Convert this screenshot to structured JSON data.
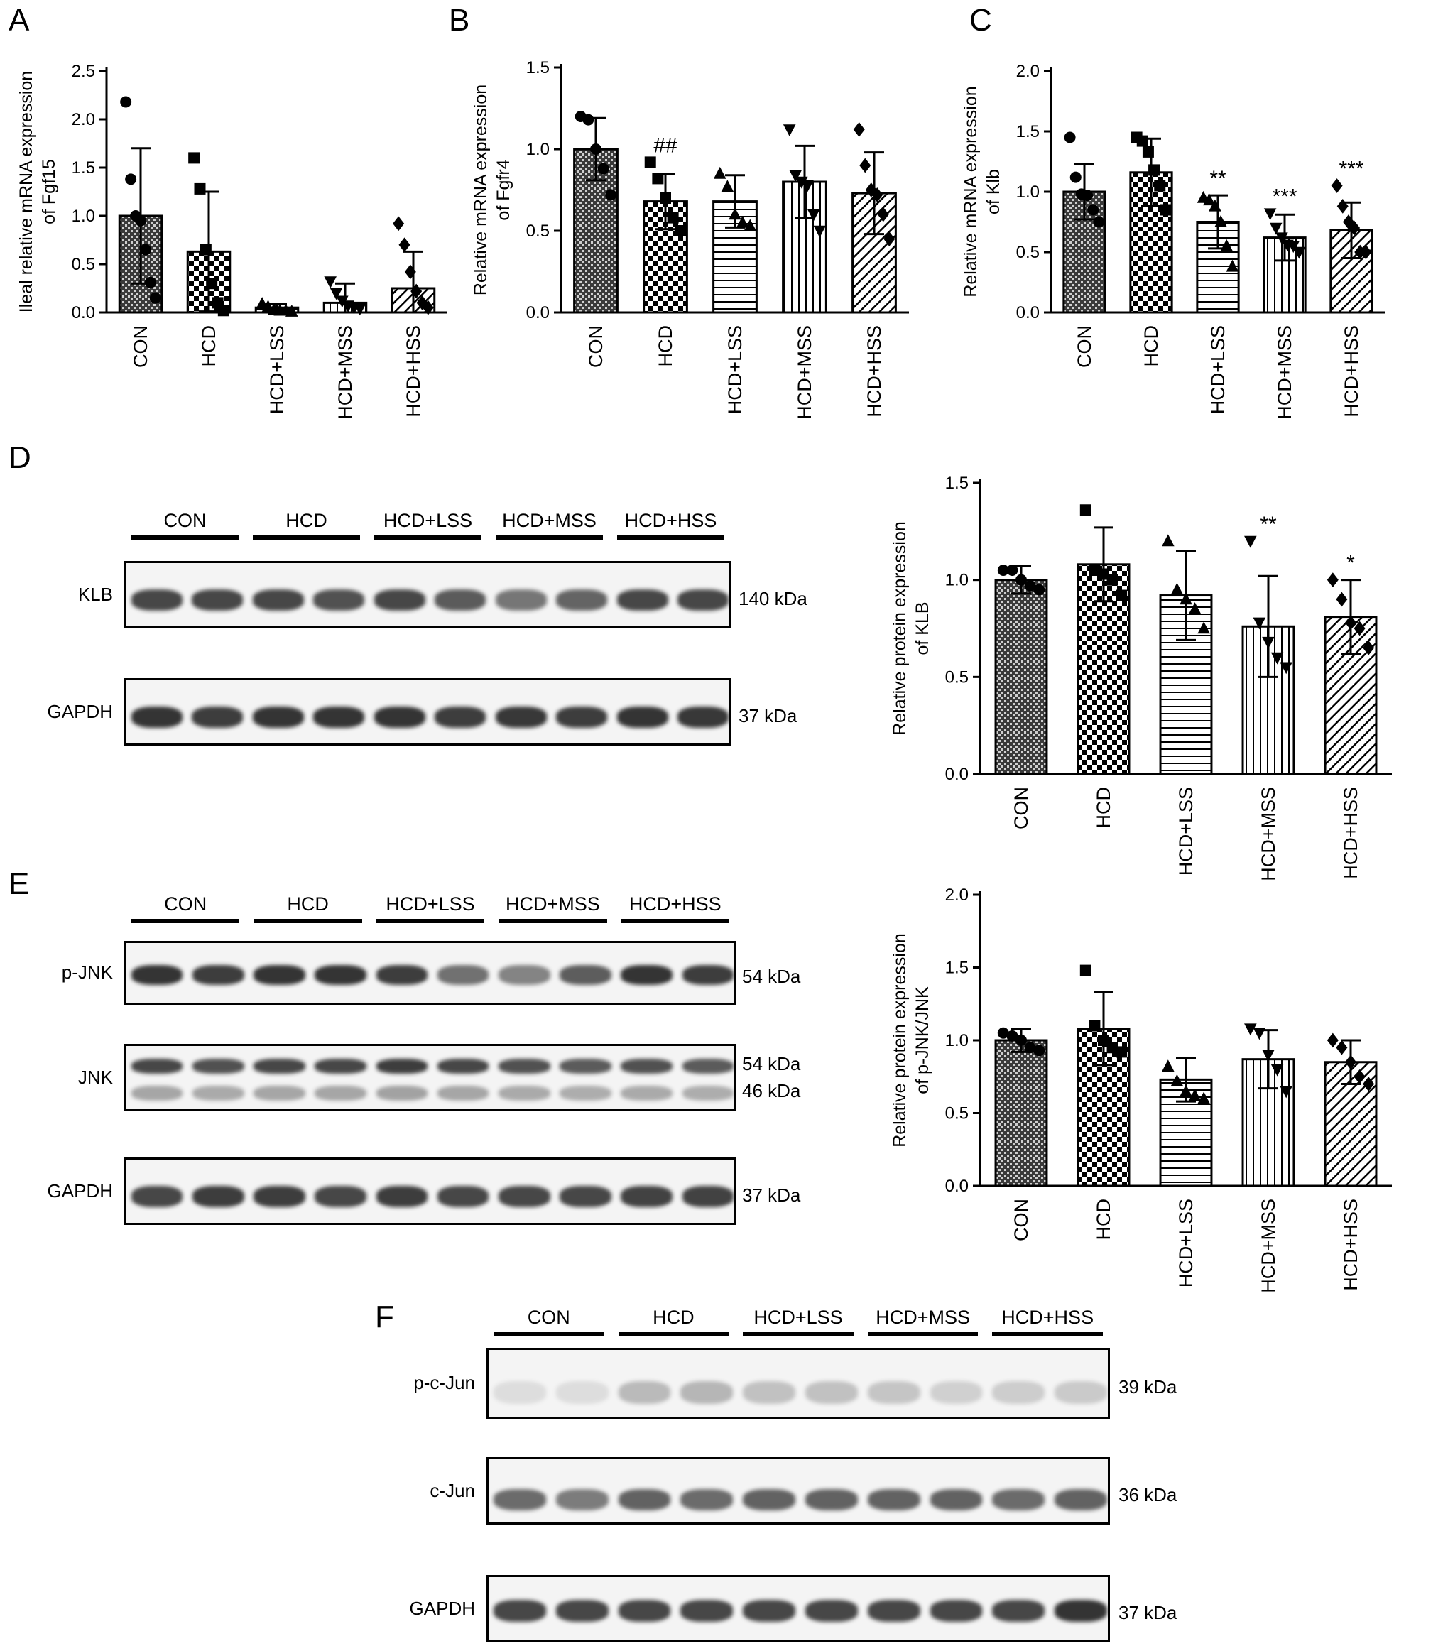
{
  "panels": [
    "A",
    "B",
    "C",
    "D",
    "E",
    "F"
  ],
  "groups": [
    "CON",
    "HCD",
    "HCD+LSS",
    "HCD+MSS",
    "HCD+HSS"
  ],
  "chart_data": [
    {
      "id": "A",
      "type": "bar",
      "ylabel_lines": [
        "Ileal relative mRNA expression",
        "of Fgf15"
      ],
      "categories": [
        "CON",
        "HCD",
        "HCD+LSS",
        "HCD+MSS",
        "HCD+HSS"
      ],
      "values": [
        1.0,
        0.63,
        0.05,
        0.1,
        0.25
      ],
      "error": [
        0.7,
        0.62,
        0.04,
        0.2,
        0.38
      ],
      "points": [
        [
          2.18,
          1.38,
          1.0,
          0.95,
          0.65,
          0.31,
          0.15
        ],
        [
          1.6,
          1.28,
          0.65,
          0.3,
          0.1,
          0.02
        ],
        [
          0.09,
          0.06,
          0.03,
          0.02,
          0.02,
          0.01
        ],
        [
          0.32,
          0.2,
          0.12,
          0.07,
          0.05,
          0.04
        ],
        [
          0.92,
          0.7,
          0.42,
          0.22,
          0.1,
          0.05
        ]
      ],
      "markers": [
        "circle",
        "square",
        "triangle",
        "tri-down",
        "diamond"
      ],
      "ylim": [
        0,
        2.5
      ],
      "yticks": [
        "0.0",
        "0.5",
        "1.0",
        "1.5",
        "2.0",
        "2.5"
      ],
      "significance": [
        "",
        "",
        "",
        "",
        ""
      ]
    },
    {
      "id": "B",
      "type": "bar",
      "ylabel_lines": [
        "Relative mRNA expression",
        "of Fgfr4"
      ],
      "categories": [
        "CON",
        "HCD",
        "HCD+LSS",
        "HCD+MSS",
        "HCD+HSS"
      ],
      "values": [
        1.0,
        0.68,
        0.68,
        0.8,
        0.73
      ],
      "error": [
        0.19,
        0.17,
        0.16,
        0.22,
        0.25
      ],
      "points": [
        [
          1.2,
          1.18,
          1.0,
          0.88,
          0.72
        ],
        [
          0.92,
          0.82,
          0.7,
          0.58,
          0.5
        ],
        [
          0.85,
          0.77,
          0.6,
          0.55,
          0.53
        ],
        [
          1.12,
          0.84,
          0.8,
          0.78,
          0.6,
          0.5
        ],
        [
          1.12,
          0.9,
          0.75,
          0.72,
          0.6,
          0.45
        ]
      ],
      "markers": [
        "circle",
        "square",
        "triangle",
        "tri-down",
        "diamond"
      ],
      "ylim": [
        0,
        1.5
      ],
      "yticks": [
        "0.0",
        "0.5",
        "1.0",
        "1.5"
      ],
      "significance": [
        "",
        "##",
        "",
        "",
        ""
      ]
    },
    {
      "id": "C",
      "type": "bar",
      "ylabel_lines": [
        "Relative mRNA expression",
        "of Klb"
      ],
      "categories": [
        "CON",
        "HCD",
        "HCD+LSS",
        "HCD+MSS",
        "HCD+HSS"
      ],
      "values": [
        1.0,
        1.16,
        0.75,
        0.62,
        0.68
      ],
      "error": [
        0.23,
        0.28,
        0.22,
        0.19,
        0.23
      ],
      "points": [
        [
          1.45,
          1.12,
          0.98,
          0.97,
          0.85,
          0.75
        ],
        [
          1.45,
          1.42,
          1.33,
          1.18,
          1.05,
          0.85
        ],
        [
          0.95,
          0.93,
          0.88,
          0.75,
          0.55,
          0.38
        ],
        [
          0.82,
          0.7,
          0.62,
          0.56,
          0.55,
          0.5
        ],
        [
          1.05,
          0.88,
          0.75,
          0.7,
          0.5,
          0.5
        ]
      ],
      "markers": [
        "circle",
        "square",
        "triangle",
        "tri-down",
        "diamond"
      ],
      "ylim": [
        0,
        2.0
      ],
      "yticks": [
        "0.0",
        "0.5",
        "1.0",
        "1.5",
        "2.0"
      ],
      "significance": [
        "",
        "",
        "**",
        "***",
        "***"
      ]
    },
    {
      "id": "D",
      "type": "bar",
      "ylabel_lines": [
        "Relative protein expression",
        "of KLB"
      ],
      "categories": [
        "CON",
        "HCD",
        "HCD+LSS",
        "HCD+MSS",
        "HCD+HSS"
      ],
      "values": [
        1.0,
        1.08,
        0.92,
        0.76,
        0.81
      ],
      "error": [
        0.07,
        0.19,
        0.23,
        0.26,
        0.19
      ],
      "points": [
        [
          1.05,
          1.05,
          1.0,
          0.97,
          0.95
        ],
        [
          1.36,
          1.05,
          1.03,
          1.0,
          0.92
        ],
        [
          1.2,
          0.95,
          0.9,
          0.85,
          0.75
        ],
        [
          1.2,
          0.78,
          0.68,
          0.6,
          0.55
        ],
        [
          1.0,
          0.9,
          0.78,
          0.75,
          0.65
        ]
      ],
      "markers": [
        "circle",
        "square",
        "triangle",
        "tri-down",
        "diamond"
      ],
      "ylim": [
        0,
        1.5
      ],
      "yticks": [
        "0.0",
        "0.5",
        "1.0",
        "1.5"
      ],
      "significance": [
        "",
        "",
        "",
        "**",
        "*"
      ]
    },
    {
      "id": "E",
      "type": "bar",
      "ylabel_lines": [
        "Relative protein expression",
        "of p-JNK/JNK"
      ],
      "categories": [
        "CON",
        "HCD",
        "HCD+LSS",
        "HCD+MSS",
        "HCD+HSS"
      ],
      "values": [
        1.0,
        1.08,
        0.73,
        0.87,
        0.85
      ],
      "error": [
        0.08,
        0.25,
        0.15,
        0.2,
        0.15
      ],
      "points": [
        [
          1.05,
          1.03,
          1.0,
          0.95,
          0.93
        ],
        [
          1.48,
          1.1,
          1.0,
          0.95,
          0.92
        ],
        [
          0.82,
          0.72,
          0.65,
          0.62,
          0.6
        ],
        [
          1.08,
          1.05,
          0.9,
          0.8,
          0.65
        ],
        [
          1.0,
          0.95,
          0.85,
          0.75,
          0.7
        ]
      ],
      "markers": [
        "circle",
        "square",
        "triangle",
        "tri-down",
        "diamond"
      ],
      "ylim": [
        0,
        2.0
      ],
      "yticks": [
        "0.0",
        "0.5",
        "1.0",
        "1.5",
        "2.0"
      ],
      "significance": [
        "",
        "",
        "",
        "",
        ""
      ]
    }
  ],
  "blots": {
    "D": {
      "groups": [
        "CON",
        "HCD",
        "HCD+LSS",
        "HCD+MSS",
        "HCD+HSS"
      ],
      "rows": [
        {
          "label": "KLB",
          "kda": [
            "140 kDa"
          ]
        },
        {
          "label": "GAPDH",
          "kda": [
            "37 kDa"
          ]
        }
      ]
    },
    "E": {
      "groups": [
        "CON",
        "HCD",
        "HCD+LSS",
        "HCD+MSS",
        "HCD+HSS"
      ],
      "rows": [
        {
          "label": "p-JNK",
          "kda": [
            "54 kDa"
          ]
        },
        {
          "label": "JNK",
          "kda": [
            "54 kDa",
            "46 kDa"
          ]
        },
        {
          "label": "GAPDH",
          "kda": [
            "37 kDa"
          ]
        }
      ]
    },
    "F": {
      "groups": [
        "CON",
        "HCD",
        "HCD+LSS",
        "HCD+MSS",
        "HCD+HSS"
      ],
      "rows": [
        {
          "label": "p-c-Jun",
          "kda": [
            "39 kDa"
          ]
        },
        {
          "label": "c-Jun",
          "kda": [
            "36 kDa"
          ]
        },
        {
          "label": "GAPDH",
          "kda": [
            "37 kDa"
          ]
        }
      ]
    }
  }
}
